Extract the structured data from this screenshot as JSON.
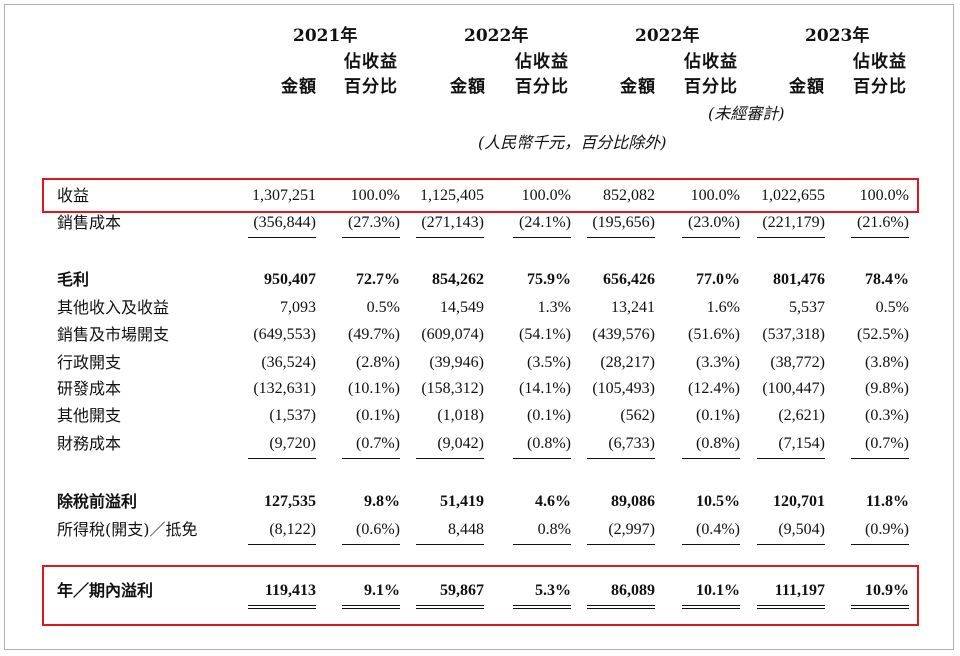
{
  "header": {
    "periods": [
      {
        "year": "2021年",
        "amount_label": "金額",
        "pct_label_1": "佔收益",
        "pct_label_2": "百分比",
        "note": ""
      },
      {
        "year": "2022年",
        "amount_label": "金額",
        "pct_label_1": "佔收益",
        "pct_label_2": "百分比",
        "note": ""
      },
      {
        "year": "2022年",
        "amount_label": "金額",
        "pct_label_1": "佔收益",
        "pct_label_2": "百分比",
        "note": "(未經審計)"
      },
      {
        "year": "2023年",
        "amount_label": "金額",
        "pct_label_1": "佔收益",
        "pct_label_2": "百分比",
        "note": ""
      }
    ],
    "unit_note": "(人民幣千元，百分比除外)"
  },
  "rows": [
    {
      "label": "收益",
      "bold": false,
      "values": [
        "1,307,251",
        "100.0%",
        "1,125,405",
        "100.0%",
        "852,082",
        "100.0%",
        "1,022,655",
        "100.0%"
      ]
    },
    {
      "label": "銷售成本",
      "bold": false,
      "values": [
        "(356,844)",
        "(27.3%)",
        "(271,143)",
        "(24.1%)",
        "(195,656)",
        "(23.0%)",
        "(221,179)",
        "(21.6%)"
      ]
    },
    {
      "label": "毛利",
      "bold": true,
      "values": [
        "950,407",
        "72.7%",
        "854,262",
        "75.9%",
        "656,426",
        "77.0%",
        "801,476",
        "78.4%"
      ]
    },
    {
      "label": "其他收入及收益",
      "bold": false,
      "values": [
        "7,093",
        "0.5%",
        "14,549",
        "1.3%",
        "13,241",
        "1.6%",
        "5,537",
        "0.5%"
      ]
    },
    {
      "label": "銷售及市場開支",
      "bold": false,
      "values": [
        "(649,553)",
        "(49.7%)",
        "(609,074)",
        "(54.1%)",
        "(439,576)",
        "(51.6%)",
        "(537,318)",
        "(52.5%)"
      ]
    },
    {
      "label": "行政開支",
      "bold": false,
      "values": [
        "(36,524)",
        "(2.8%)",
        "(39,946)",
        "(3.5%)",
        "(28,217)",
        "(3.3%)",
        "(38,772)",
        "(3.8%)"
      ]
    },
    {
      "label": "研發成本",
      "bold": false,
      "values": [
        "(132,631)",
        "(10.1%)",
        "(158,312)",
        "(14.1%)",
        "(105,493)",
        "(12.4%)",
        "(100,447)",
        "(9.8%)"
      ]
    },
    {
      "label": "其他開支",
      "bold": false,
      "values": [
        "(1,537)",
        "(0.1%)",
        "(1,018)",
        "(0.1%)",
        "(562)",
        "(0.1%)",
        "(2,621)",
        "(0.3%)"
      ]
    },
    {
      "label": "財務成本",
      "bold": false,
      "values": [
        "(9,720)",
        "(0.7%)",
        "(9,042)",
        "(0.8%)",
        "(6,733)",
        "(0.8%)",
        "(7,154)",
        "(0.7%)"
      ]
    },
    {
      "label": "除稅前溢利",
      "bold": true,
      "values": [
        "127,535",
        "9.8%",
        "51,419",
        "4.6%",
        "89,086",
        "10.5%",
        "120,701",
        "11.8%"
      ]
    },
    {
      "label": "所得稅(開支)／抵免",
      "bold": false,
      "values": [
        "(8,122)",
        "(0.6%)",
        "8,448",
        "0.8%",
        "(2,997)",
        "(0.4%)",
        "(9,504)",
        "(0.9%)"
      ]
    },
    {
      "label": "年／期內溢利",
      "bold": true,
      "values": [
        "119,413",
        "9.1%",
        "59,867",
        "5.3%",
        "86,089",
        "10.1%",
        "111,197",
        "10.9%"
      ]
    }
  ],
  "colors": {
    "highlight": "#e0161e",
    "text": "#111111",
    "frame": "#b0b0b0"
  }
}
